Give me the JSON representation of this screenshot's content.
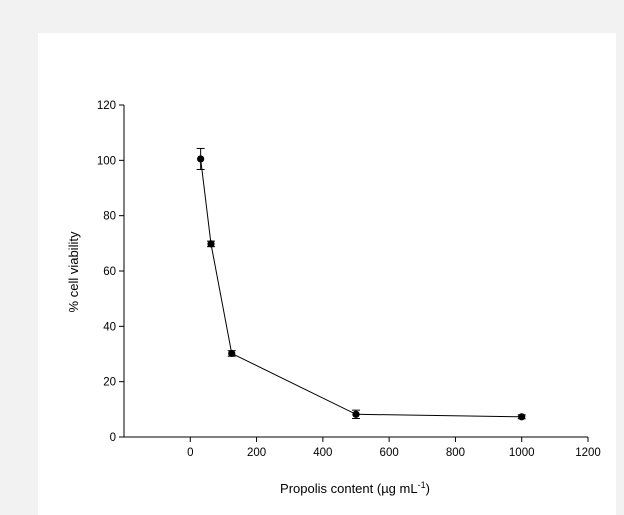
{
  "chart_data": {
    "type": "scatter",
    "title": "",
    "xlabel_main": "Propolis content (µg mL",
    "xlabel_sup": "-1",
    "xlabel_tail": ")",
    "ylabel": "% cell viability",
    "xlim": [
      -200,
      1200
    ],
    "ylim": [
      0,
      120
    ],
    "x_ticks": [
      0,
      200,
      400,
      600,
      800,
      1000,
      1200
    ],
    "y_ticks": [
      0,
      20,
      40,
      60,
      80,
      100,
      120
    ],
    "grid": false,
    "legend": "none",
    "series": [
      {
        "color": "#000000",
        "marker": "circle",
        "line": true,
        "points": [
          {
            "x": 31.25,
            "y": 100.5,
            "err": 3.8
          },
          {
            "x": 62.5,
            "y": 69.8,
            "err": 1.0
          },
          {
            "x": 125,
            "y": 30.2,
            "err": 1.0
          },
          {
            "x": 500,
            "y": 8.2,
            "err": 1.5
          },
          {
            "x": 1000,
            "y": 7.3,
            "err": 0.7
          }
        ]
      }
    ]
  }
}
